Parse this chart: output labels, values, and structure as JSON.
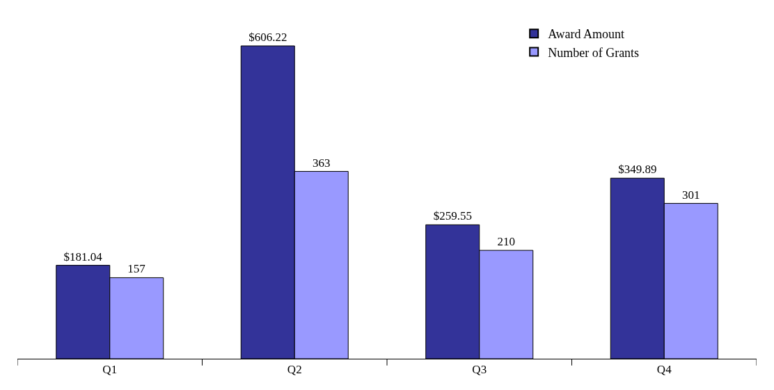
{
  "chart_data": {
    "type": "bar",
    "categories": [
      "Q1",
      "Q2",
      "Q3",
      "Q4"
    ],
    "series": [
      {
        "name": "Award Amount",
        "color": "#333399",
        "values": [
          181.04,
          606.22,
          259.55,
          349.89
        ],
        "value_labels": [
          "$181.04",
          "$606.22",
          "$259.55",
          "$349.89"
        ]
      },
      {
        "name": "Number of Grants",
        "color": "#9999ff",
        "values": [
          157,
          363,
          210,
          301
        ],
        "value_labels": [
          "157",
          "363",
          "210",
          "301"
        ]
      }
    ],
    "legend": "top right"
  }
}
